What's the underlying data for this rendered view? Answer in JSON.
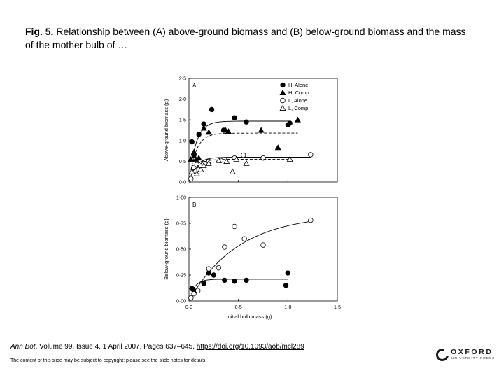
{
  "caption": {
    "label": "Fig. 5.",
    "text": "Relationship between (A) above-ground biomass and (B) below-ground biomass and the mass of the mother bulb of …"
  },
  "citation": {
    "journal": "Ann Bot",
    "details": ", Volume 99, Issue 4, 1 April 2007, Pages 637–645,",
    "doi": "https://doi.org/10.1093/aob/mcl289"
  },
  "copyright": "The content of this slide may be subject to copyright: please see the slide notes for details.",
  "publisher": {
    "name": "OXFORD",
    "sub": "UNIVERSITY PRESS"
  },
  "chart_data": [
    {
      "type": "scatter",
      "panel_label": "A",
      "ylabel": "Above-ground biomass (g)",
      "xlim": [
        0,
        1.5
      ],
      "ylim": [
        0,
        2.5
      ],
      "yticks": [
        0,
        0.5,
        1.0,
        1.5,
        2.0,
        2.5
      ],
      "ytick_labels": [
        "0·0",
        "0·5",
        "1·0",
        "1·5",
        "2·0",
        "2·5"
      ],
      "legend_position": "top-right",
      "series": [
        {
          "name": "H, Alone",
          "marker": "filled-circle",
          "line": "solid",
          "fit": {
            "plateau": 1.47,
            "rate": 14
          },
          "points": [
            [
              0.03,
              0.97
            ],
            [
              0.05,
              0.65
            ],
            [
              0.1,
              1.15
            ],
            [
              0.15,
              1.4
            ],
            [
              0.23,
              1.75
            ],
            [
              0.35,
              1.25
            ],
            [
              0.46,
              1.55
            ],
            [
              0.58,
              1.45
            ],
            [
              1.0,
              1.38
            ],
            [
              1.02,
              1.42
            ]
          ]
        },
        {
          "name": "H, Comp.",
          "marker": "filled-triangle",
          "line": "dashed",
          "fit": {
            "plateau": 1.18,
            "rate": 14
          },
          "points": [
            [
              0.02,
              0.55
            ],
            [
              0.05,
              0.72
            ],
            [
              0.07,
              0.55
            ],
            [
              0.1,
              0.58
            ],
            [
              0.15,
              1.3
            ],
            [
              0.2,
              1.2
            ],
            [
              0.37,
              1.25
            ],
            [
              0.4,
              1.22
            ],
            [
              0.73,
              1.25
            ],
            [
              0.9,
              0.83
            ],
            [
              1.1,
              1.5
            ]
          ]
        },
        {
          "name": "L, Alone",
          "marker": "open-circle",
          "line": "solid",
          "fit": {
            "plateau": 0.6,
            "rate": 14
          },
          "points": [
            [
              0.02,
              0.08
            ],
            [
              0.05,
              0.35
            ],
            [
              0.08,
              0.42
            ],
            [
              0.1,
              0.3
            ],
            [
              0.15,
              0.45
            ],
            [
              0.2,
              0.5
            ],
            [
              0.32,
              0.52
            ],
            [
              0.46,
              0.58
            ],
            [
              0.55,
              0.65
            ],
            [
              0.75,
              0.58
            ],
            [
              1.23,
              0.66
            ]
          ]
        },
        {
          "name": "L, Comp.",
          "marker": "open-triangle",
          "line": "dashed",
          "fit": {
            "plateau": 0.55,
            "rate": 14
          },
          "points": [
            [
              0.03,
              0.25
            ],
            [
              0.08,
              0.2
            ],
            [
              0.12,
              0.3
            ],
            [
              0.15,
              0.4
            ],
            [
              0.2,
              0.45
            ],
            [
              0.3,
              0.52
            ],
            [
              0.38,
              0.5
            ],
            [
              0.44,
              0.25
            ],
            [
              0.48,
              0.55
            ],
            [
              0.58,
              0.45
            ],
            [
              1.02,
              0.55
            ]
          ]
        }
      ]
    },
    {
      "type": "scatter",
      "panel_label": "B",
      "ylabel": "Below-ground biomass (g)",
      "xlabel": "Initial bulb mass (g)",
      "xlim": [
        0,
        1.5
      ],
      "ylim": [
        0,
        1.0
      ],
      "xticks": [
        0,
        0.5,
        1.0,
        1.5
      ],
      "xtick_labels": [
        "0·0",
        "0·5",
        "1·0",
        "1·5"
      ],
      "yticks": [
        0,
        0.25,
        0.5,
        0.75,
        1.0
      ],
      "ytick_labels": [
        "0·00",
        "0·25",
        "0·50",
        "0·75",
        "1·00"
      ],
      "series": [
        {
          "name": "H",
          "marker": "filled-circle",
          "line": "solid",
          "fit": {
            "plateau": 0.21,
            "rate": 18
          },
          "points": [
            [
              0.03,
              0.12
            ],
            [
              0.05,
              0.1
            ],
            [
              0.15,
              0.17
            ],
            [
              0.2,
              0.27
            ],
            [
              0.25,
              0.25
            ],
            [
              0.36,
              0.2
            ],
            [
              0.46,
              0.19
            ],
            [
              0.58,
              0.2
            ],
            [
              0.98,
              0.15
            ],
            [
              1.0,
              0.27
            ]
          ]
        },
        {
          "name": "L",
          "marker": "open-circle",
          "line": "solid",
          "fit": {
            "plateau": 0.84,
            "rate": 2.0
          },
          "points": [
            [
              0.02,
              0.03
            ],
            [
              0.05,
              0.07
            ],
            [
              0.09,
              0.1
            ],
            [
              0.2,
              0.31
            ],
            [
              0.3,
              0.32
            ],
            [
              0.36,
              0.52
            ],
            [
              0.46,
              0.72
            ],
            [
              0.56,
              0.6
            ],
            [
              0.75,
              0.54
            ],
            [
              1.23,
              0.78
            ]
          ]
        }
      ]
    }
  ]
}
